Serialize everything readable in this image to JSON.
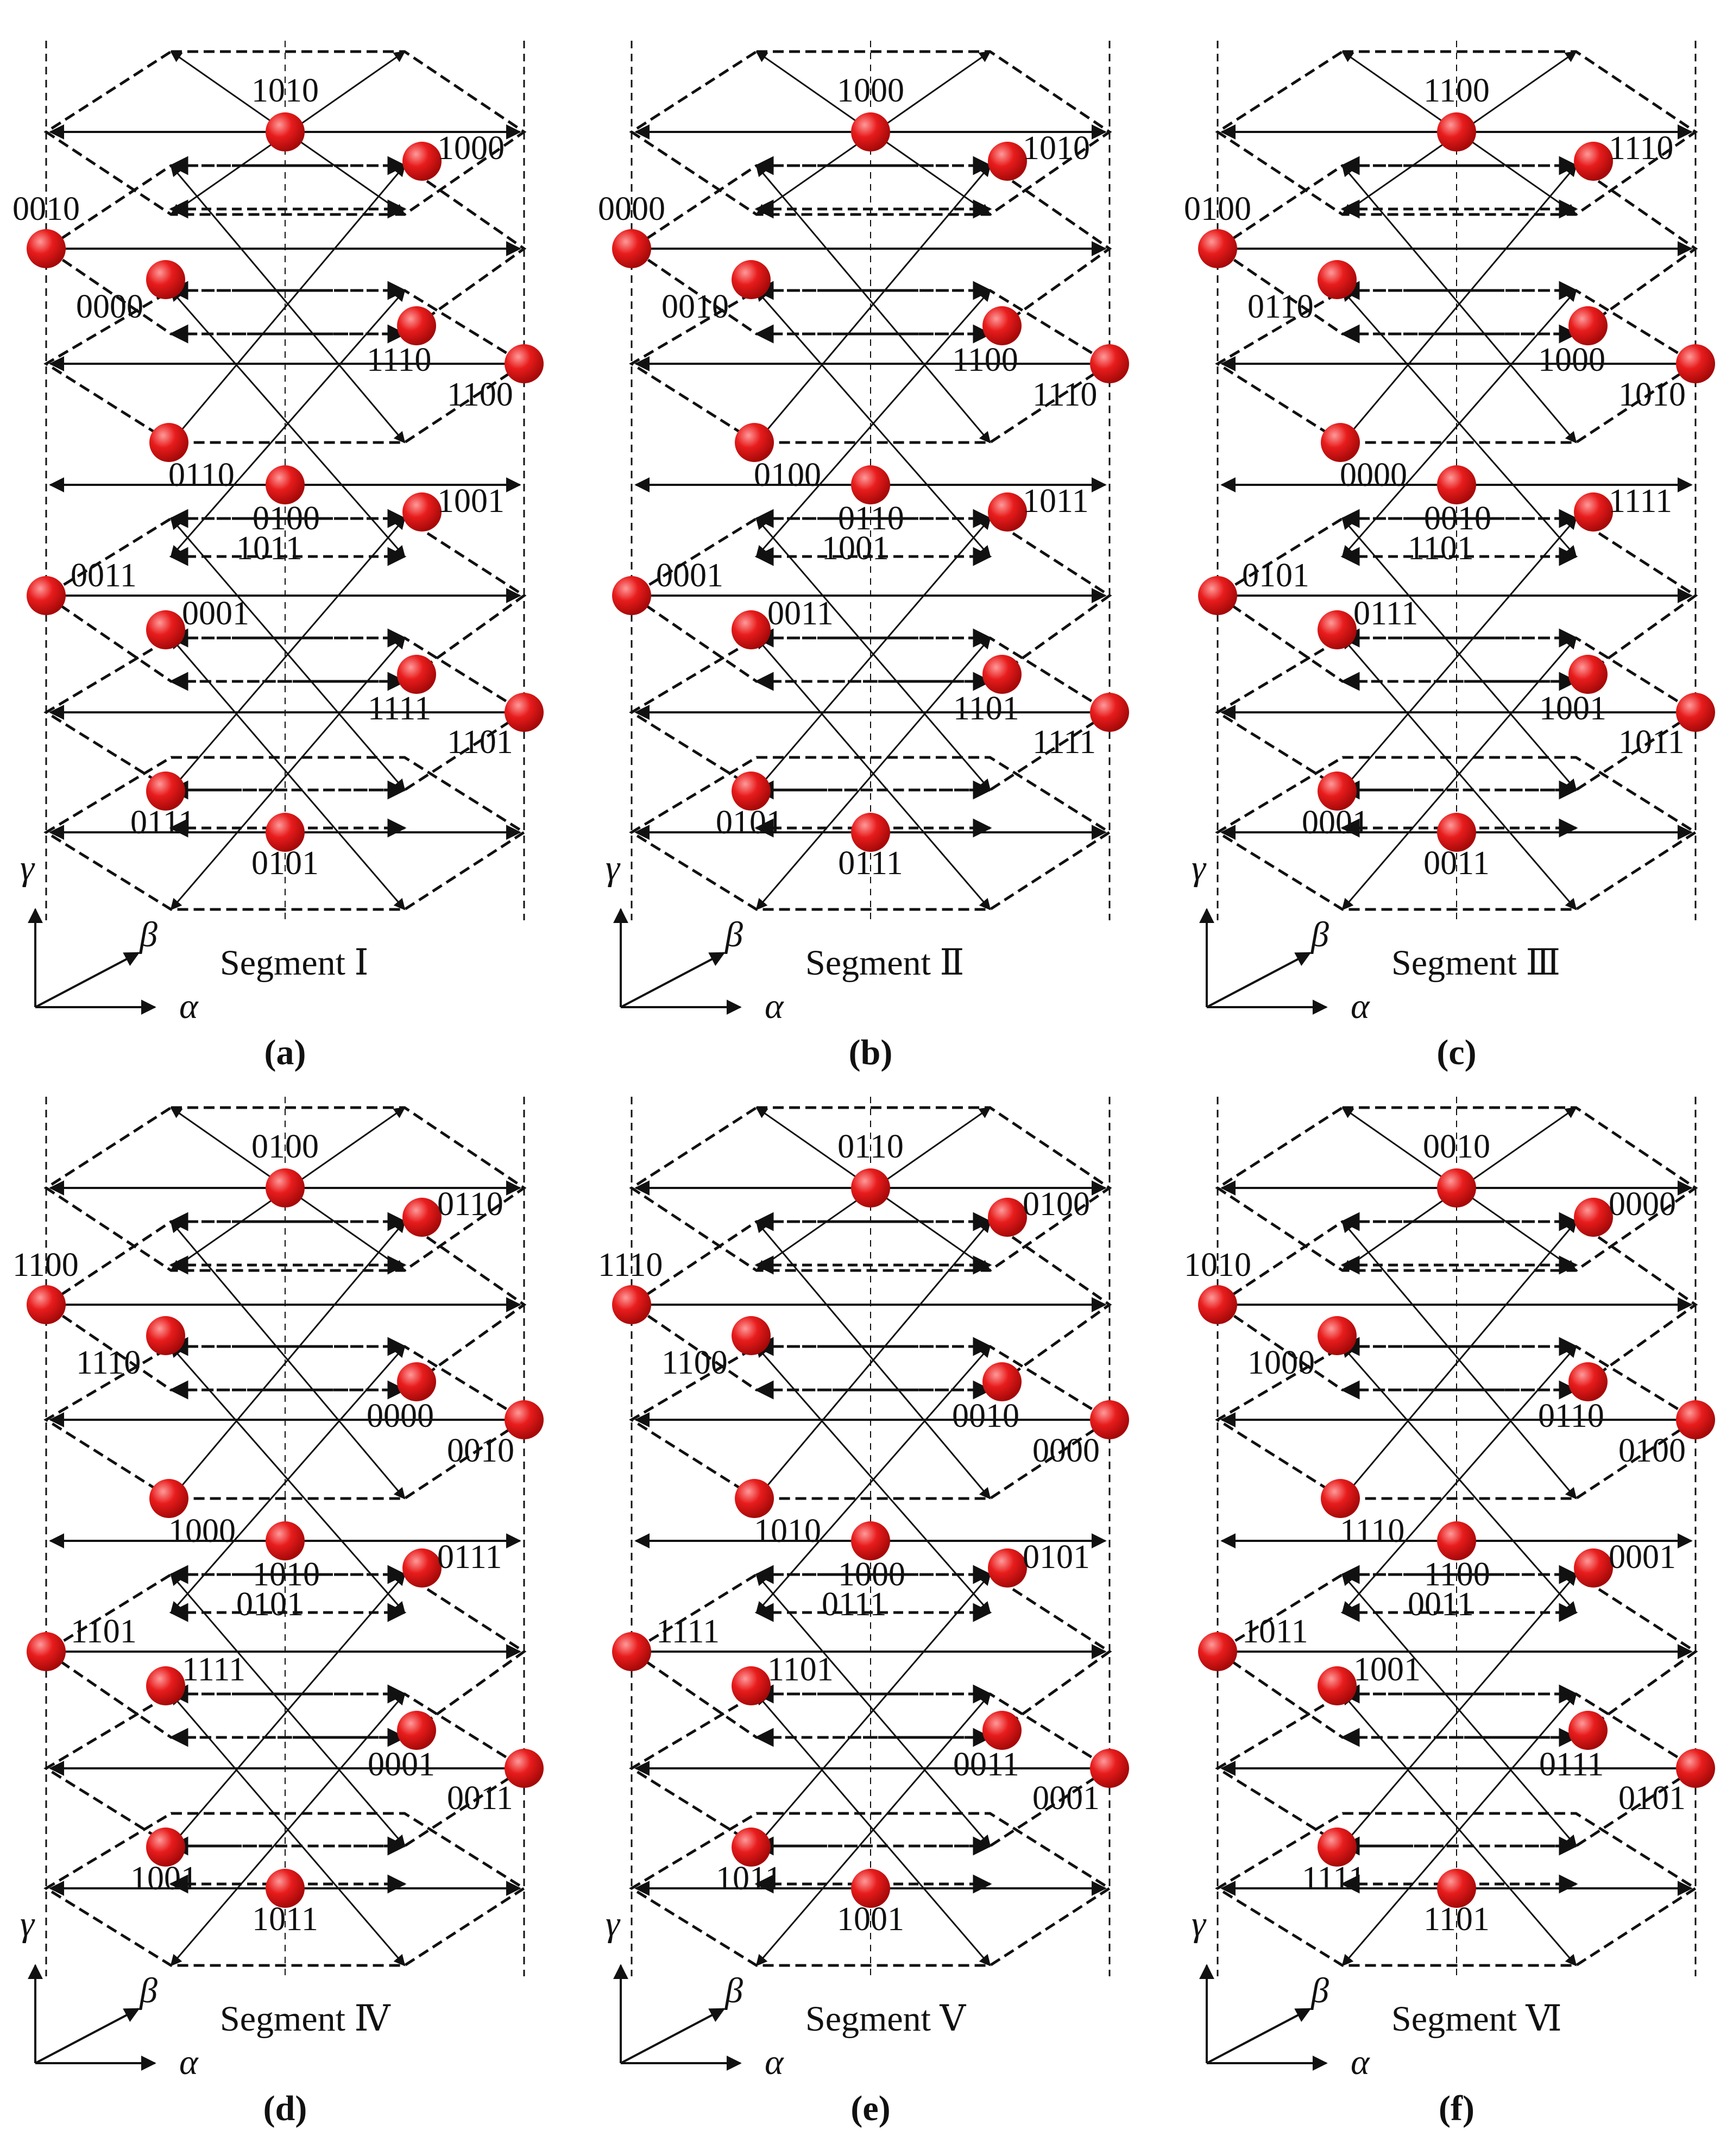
{
  "panels": [
    {
      "caption": "(a)",
      "segment": "Segment Ⅰ",
      "vectors": {
        "top": "1010",
        "ur1": "1000",
        "l1": "0010",
        "ul2": "0000",
        "r2": "1110",
        "rr": "1100",
        "ul3": "0110",
        "c3": "0100",
        "r3": "1001",
        "c3b": "1011",
        "l2": "0011",
        "ul4": "0001",
        "r4": "1111",
        "rr2": "1101",
        "ul5": "0111",
        "bot": "0101"
      }
    },
    {
      "caption": "(b)",
      "segment": "Segment Ⅱ",
      "vectors": {
        "top": "1000",
        "ur1": "1010",
        "l1": "0000",
        "ul2": "0010",
        "r2": "1100",
        "rr": "1110",
        "ul3": "0100",
        "c3": "0110",
        "r3": "1011",
        "c3b": "1001",
        "l2": "0001",
        "ul4": "0011",
        "r4": "1101",
        "rr2": "1111",
        "ul5": "0101",
        "bot": "0111"
      }
    },
    {
      "caption": "(c)",
      "segment": "Segment Ⅲ",
      "vectors": {
        "top": "1100",
        "ur1": "1110",
        "l1": "0100",
        "ul2": "0110",
        "r2": "1000",
        "rr": "1010",
        "ul3": "0000",
        "c3": "0010",
        "r3": "1111",
        "c3b": "1101",
        "l2": "0101",
        "ul4": "0111",
        "r4": "1001",
        "rr2": "1011",
        "ul5": "0001",
        "bot": "0011"
      }
    },
    {
      "caption": "(d)",
      "segment": "Segment Ⅳ",
      "vectors": {
        "top": "0100",
        "ur1": "0110",
        "l1": "1100",
        "ul2": "1110",
        "r2": "0000",
        "rr": "0010",
        "ul3": "1000",
        "c3": "1010",
        "r3": "0111",
        "c3b": "0101",
        "l2": "1101",
        "ul4": "1111",
        "r4": "0001",
        "rr2": "0011",
        "ul5": "1001",
        "bot": "1011"
      }
    },
    {
      "caption": "(e)",
      "segment": "Segment Ⅴ",
      "vectors": {
        "top": "0110",
        "ur1": "0100",
        "l1": "1110",
        "ul2": "1100",
        "r2": "0010",
        "rr": "0000",
        "ul3": "1010",
        "c3": "1000",
        "r3": "0101",
        "c3b": "0111",
        "l2": "1111",
        "ul4": "1101",
        "r4": "0011",
        "rr2": "0001",
        "ul5": "1011",
        "bot": "1001"
      }
    },
    {
      "caption": "(f)",
      "segment": "Segment Ⅵ",
      "vectors": {
        "top": "0010",
        "ur1": "0000",
        "l1": "1010",
        "ul2": "1000",
        "r2": "0110",
        "rr": "0100",
        "ul3": "1110",
        "c3": "1100",
        "r3": "0001",
        "c3b": "0011",
        "l2": "1011",
        "ul4": "1001",
        "r4": "0111",
        "rr2": "0101",
        "ul5": "1111",
        "bot": "1101"
      }
    }
  ],
  "axes": {
    "x": "α",
    "y": "β",
    "z": "γ"
  },
  "colors": {
    "node": "#e01818",
    "node_highlight": "#ff8a8a",
    "line": "#111111"
  }
}
